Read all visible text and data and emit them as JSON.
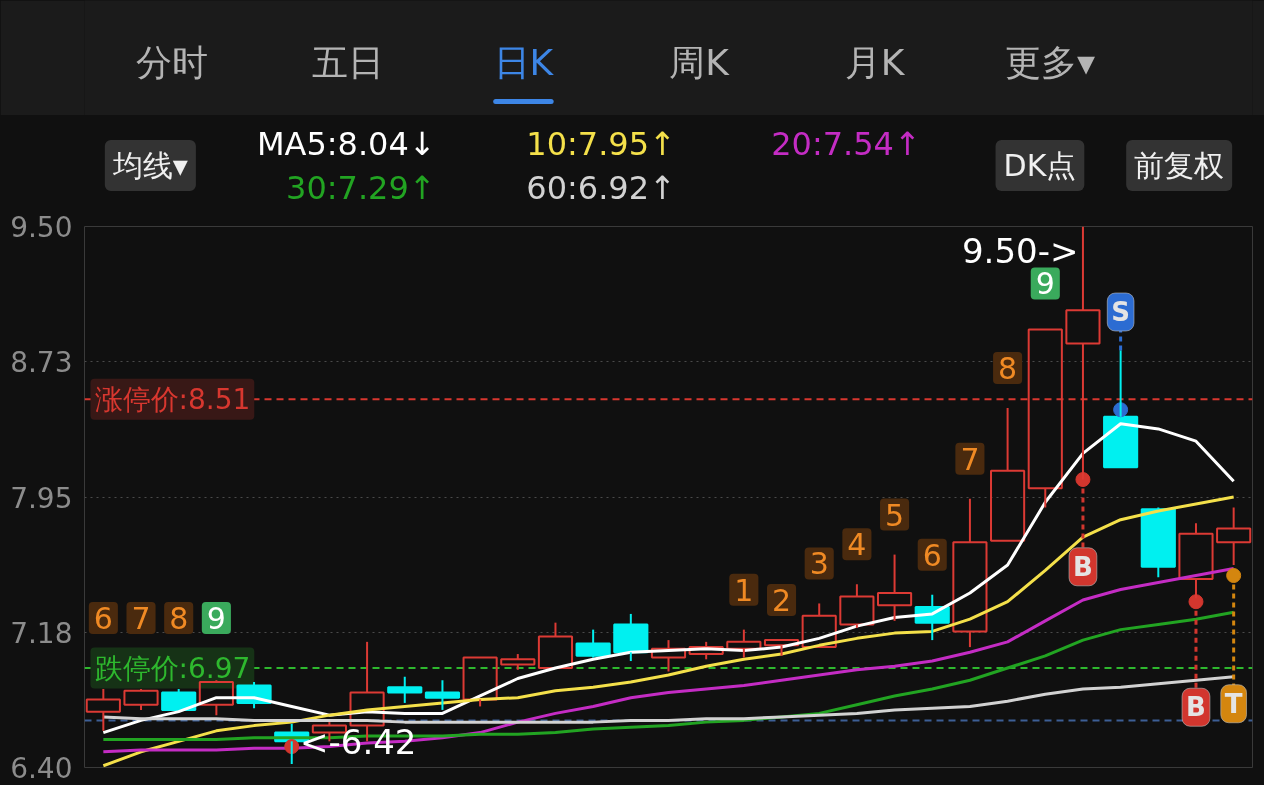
{
  "chart_data": {
    "type": "candlestick",
    "categories": [
      null,
      null,
      null,
      null,
      null,
      null,
      null,
      null,
      null,
      null,
      null,
      null,
      null,
      null,
      null,
      null,
      null,
      null,
      null,
      null,
      null,
      null,
      null,
      null,
      null,
      null,
      null,
      null,
      null,
      null,
      null
    ],
    "ohlc": [
      [
        6.72,
        6.85,
        6.61,
        6.79
      ],
      [
        6.76,
        6.85,
        6.73,
        6.84
      ],
      [
        6.83,
        6.85,
        6.73,
        6.73
      ],
      [
        6.76,
        6.9,
        6.7,
        6.89
      ],
      [
        6.87,
        6.89,
        6.74,
        6.77
      ],
      [
        6.6,
        6.65,
        6.42,
        6.55
      ],
      [
        6.6,
        6.66,
        6.55,
        6.64
      ],
      [
        6.64,
        7.12,
        6.55,
        6.83
      ],
      [
        6.86,
        6.92,
        6.77,
        6.83
      ],
      [
        6.83,
        6.9,
        6.73,
        6.8
      ],
      [
        6.79,
        7.03,
        6.75,
        7.03
      ],
      [
        6.99,
        7.05,
        6.96,
        7.02
      ],
      [
        6.97,
        7.23,
        6.97,
        7.15
      ],
      [
        7.11,
        7.19,
        7.03,
        7.04
      ],
      [
        7.22,
        7.28,
        7.01,
        7.06
      ],
      [
        7.03,
        7.13,
        6.95,
        7.08
      ],
      [
        7.05,
        7.12,
        7.02,
        7.09
      ],
      [
        7.08,
        7.19,
        7.03,
        7.12
      ],
      [
        7.1,
        7.13,
        7.04,
        7.13
      ],
      [
        7.09,
        7.34,
        7.09,
        7.27
      ],
      [
        7.22,
        7.45,
        7.2,
        7.38
      ],
      [
        7.33,
        7.62,
        7.24,
        7.4
      ],
      [
        7.32,
        7.39,
        7.13,
        7.23
      ],
      [
        7.18,
        7.94,
        7.09,
        7.69
      ],
      [
        7.7,
        8.46,
        7.7,
        8.1
      ],
      [
        8.0,
        8.91,
        7.89,
        8.91
      ],
      [
        8.83,
        9.5,
        8.05,
        9.02
      ],
      [
        8.41,
        8.79,
        8.12,
        8.12
      ],
      [
        7.88,
        7.89,
        7.49,
        7.55
      ],
      [
        7.48,
        7.8,
        7.37,
        7.74
      ],
      [
        7.69,
        7.89,
        7.56,
        7.77
      ]
    ],
    "colors": [
      "#dc3a34",
      "#dc3a34",
      "#00f0f0",
      "#dc3a34",
      "#00f0f0",
      "#00f0f0",
      "#dc3a34",
      "#dc3a34",
      "#00f0f0",
      "#00f0f0",
      "#dc3a34",
      "#dc3a34",
      "#dc3a34",
      "#00f0f0",
      "#00f0f0",
      "#dc3a34",
      "#dc3a34",
      "#dc3a34",
      "#dc3a34",
      "#dc3a34",
      "#dc3a34",
      "#dc3a34",
      "#00f0f0",
      "#dc3a34",
      "#dc3a34",
      "#dc3a34",
      "#dc3a34",
      "#00f0f0",
      "#00f0f0",
      "#dc3a34",
      "#dc3a34"
    ],
    "value_labels": [
      "6",
      "7",
      "8",
      "9",
      null,
      null,
      null,
      null,
      null,
      null,
      null,
      null,
      null,
      null,
      null,
      null,
      null,
      "1",
      "2",
      "3",
      "4",
      "5",
      "6",
      "7",
      "8",
      "9",
      null,
      null,
      null,
      null,
      null
    ],
    "series": [
      {
        "type": "line",
        "name": "MA5:8.04↓",
        "color": "#ffffff",
        "values": [
          6.6,
          6.67,
          6.72,
          6.8,
          6.8,
          6.75,
          6.7,
          6.72,
          6.71,
          6.71,
          6.81,
          6.91,
          6.97,
          7.02,
          7.06,
          7.07,
          7.08,
          7.07,
          7.09,
          7.14,
          7.21,
          7.26,
          7.28,
          7.4,
          7.56,
          7.92,
          8.2,
          8.37,
          8.34,
          8.27,
          8.04
        ]
      },
      {
        "type": "line",
        "name": "10:7.95↑",
        "color": "#f4e04a",
        "values": [
          6.41,
          6.49,
          6.55,
          6.61,
          6.64,
          6.66,
          6.7,
          6.73,
          6.75,
          6.77,
          6.79,
          6.8,
          6.84,
          6.86,
          6.89,
          6.93,
          6.98,
          7.02,
          7.05,
          7.1,
          7.14,
          7.17,
          7.18,
          7.25,
          7.35,
          7.53,
          7.72,
          7.82,
          7.87,
          7.91,
          7.95
        ]
      },
      {
        "type": "line",
        "name": "20:7.54↑",
        "color": "#c42cc4",
        "values": [
          6.49,
          6.5,
          6.5,
          6.5,
          6.51,
          6.51,
          6.52,
          6.54,
          6.55,
          6.57,
          6.6,
          6.66,
          6.71,
          6.75,
          6.8,
          6.83,
          6.85,
          6.87,
          6.9,
          6.93,
          6.96,
          6.98,
          7.01,
          7.06,
          7.12,
          7.24,
          7.36,
          7.42,
          7.46,
          7.5,
          7.54
        ]
      },
      {
        "type": "line",
        "name": "30:7.29↑",
        "color": "#22a422",
        "values": [
          6.56,
          6.56,
          6.56,
          6.56,
          6.57,
          6.57,
          6.57,
          6.58,
          6.58,
          6.58,
          6.59,
          6.59,
          6.6,
          6.62,
          6.63,
          6.64,
          6.66,
          6.67,
          6.69,
          6.71,
          6.76,
          6.81,
          6.85,
          6.9,
          6.97,
          7.04,
          7.13,
          7.19,
          7.22,
          7.25,
          7.29
        ]
      },
      {
        "type": "line",
        "name": "60:6.92↑",
        "color": "#d2d2d2",
        "values": [
          6.69,
          6.68,
          6.68,
          6.68,
          6.67,
          6.67,
          6.67,
          6.67,
          6.66,
          6.66,
          6.66,
          6.66,
          6.66,
          6.66,
          6.67,
          6.67,
          6.68,
          6.68,
          6.69,
          6.7,
          6.71,
          6.73,
          6.74,
          6.75,
          6.78,
          6.82,
          6.85,
          6.86,
          6.88,
          6.9,
          6.92
        ]
      },
      {
        "type": "scatter",
        "color": "#2c6cd2",
        "marker": "circle",
        "values": [
          null,
          null,
          null,
          null,
          null,
          null,
          null,
          null,
          null,
          null,
          null,
          null,
          null,
          null,
          null,
          null,
          null,
          null,
          null,
          null,
          null,
          null,
          null,
          null,
          null,
          null,
          null,
          8.45,
          null,
          null,
          null
        ],
        "value_labels": [
          null,
          null,
          null,
          null,
          null,
          null,
          null,
          null,
          null,
          null,
          null,
          null,
          null,
          null,
          null,
          null,
          null,
          null,
          null,
          null,
          null,
          null,
          null,
          null,
          null,
          null,
          null,
          "S",
          null,
          null,
          null
        ]
      },
      {
        "type": "scatter",
        "color": "#d2362e",
        "marker": "circle",
        "values": [
          null,
          null,
          null,
          null,
          null,
          6.52,
          null,
          null,
          null,
          null,
          null,
          null,
          null,
          null,
          null,
          null,
          null,
          null,
          null,
          null,
          null,
          null,
          null,
          null,
          null,
          null,
          8.05,
          null,
          null,
          7.35,
          null
        ],
        "value_labels": [
          null,
          null,
          null,
          null,
          null,
          null,
          null,
          null,
          null,
          null,
          null,
          null,
          null,
          null,
          null,
          null,
          null,
          null,
          null,
          null,
          null,
          null,
          null,
          null,
          null,
          null,
          "B",
          null,
          null,
          "B",
          null
        ]
      },
      {
        "type": "scatter",
        "color": "#d4860f",
        "marker": "circle",
        "values": [
          null,
          null,
          null,
          null,
          null,
          null,
          null,
          null,
          null,
          null,
          null,
          null,
          null,
          null,
          null,
          null,
          null,
          null,
          null,
          null,
          null,
          null,
          null,
          null,
          null,
          null,
          null,
          null,
          null,
          null,
          7.5
        ],
        "value_labels": [
          null,
          null,
          null,
          null,
          null,
          null,
          null,
          null,
          null,
          null,
          null,
          null,
          null,
          null,
          null,
          null,
          null,
          null,
          null,
          null,
          null,
          null,
          null,
          null,
          null,
          null,
          null,
          null,
          null,
          null,
          "T"
        ]
      }
    ],
    "ylim": [
      6.4,
      9.5
    ],
    "yticks": [
      {
        "value": 6.4,
        "label": "6.40"
      },
      {
        "value": 7.175,
        "label": "7.18"
      },
      7.95,
      {
        "value": 8.725,
        "label": "8.73"
      },
      {
        "value": 9.5,
        "label": "9.50"
      }
    ],
    "grid": "y",
    "legend": "top",
    "tick_labels": "y",
    "ref_lines": [
      {
        "axis": "y",
        "value": 8.51,
        "label": "涨停价:8.51",
        "color": "#d8372f",
        "line_style": "dashed"
      },
      {
        "axis": "y",
        "value": 6.97,
        "label": "跌停价:6.97",
        "color": "#2eb82e",
        "line_style": "dashed"
      },
      {
        "axis": "y",
        "value": 6.67,
        "color": "#3d5f96",
        "line_style": "dashed"
      }
    ],
    "annotations": [
      "分时",
      "五日",
      "日K",
      "周K",
      "月K",
      "更多▾",
      "均线▾",
      "DK点",
      "前复权",
      "9.50->",
      "<-6.42"
    ]
  }
}
